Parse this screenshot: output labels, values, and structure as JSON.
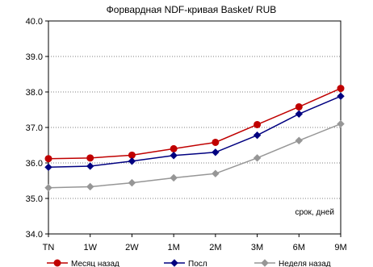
{
  "chart_data": {
    "type": "line",
    "title": "Форвардная NDF-кривая Basket/ RUB",
    "annotation": "срок, дней",
    "categories": [
      "TN",
      "1W",
      "2W",
      "1M",
      "2M",
      "3M",
      "6M",
      "9M"
    ],
    "y_tick_labels": [
      "34.0",
      "35.0",
      "36.0",
      "37.0",
      "38.0",
      "39.0",
      "40.0"
    ],
    "ylim": [
      34.0,
      40.0
    ],
    "y_step": 1.0,
    "grid": "horizontal",
    "legend_position": "bottom",
    "series": [
      {
        "name": "Месяц назад",
        "color": "#C00000",
        "marker": "circle",
        "values": [
          36.12,
          36.14,
          36.22,
          36.4,
          36.58,
          37.08,
          37.58,
          38.1
        ]
      },
      {
        "name": "Посл",
        "color": "#000080",
        "marker": "diamond",
        "values": [
          35.88,
          35.91,
          36.05,
          36.21,
          36.3,
          36.78,
          37.38,
          37.88
        ]
      },
      {
        "name": "Неделя назад",
        "color": "#969696",
        "marker": "diamond",
        "values": [
          35.3,
          35.33,
          35.44,
          35.58,
          35.7,
          36.14,
          36.63,
          37.1
        ]
      }
    ]
  }
}
